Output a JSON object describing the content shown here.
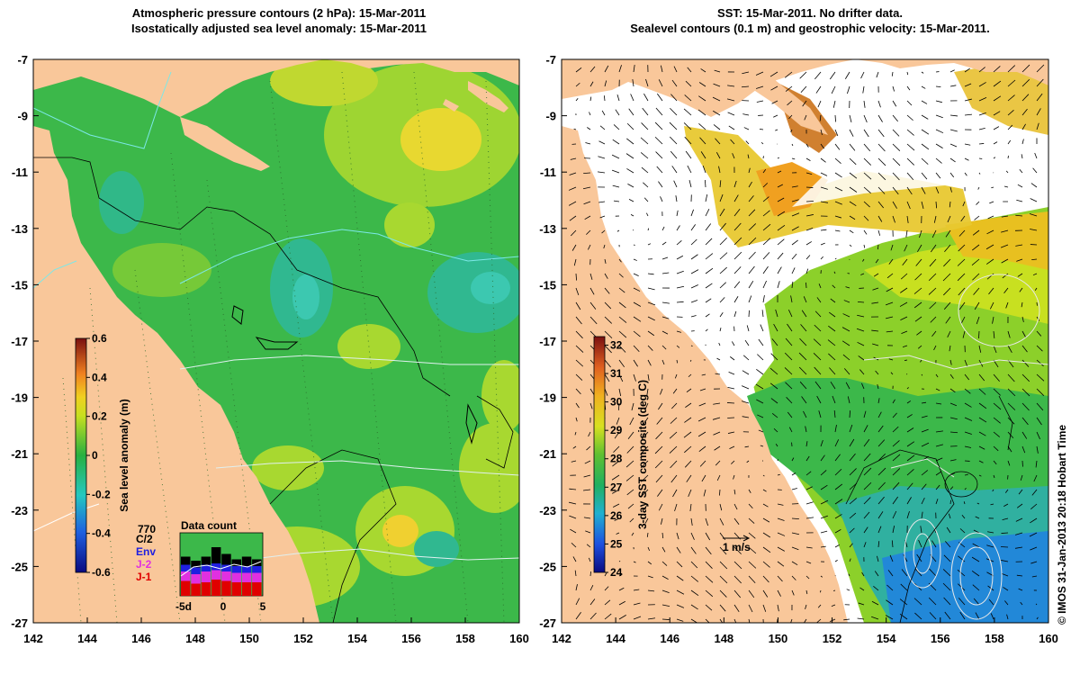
{
  "left_panel": {
    "title_line1": "Atmospheric pressure contours (2 hPa): 15-Mar-2011",
    "title_line2": "Isostatically adjusted sea level anomaly: 15-Mar-2011",
    "lat_ticks": [
      "-7",
      "-9",
      "-11",
      "-13",
      "-15",
      "-17",
      "-19",
      "-21",
      "-23",
      "-25",
      "-27"
    ],
    "lon_ticks": [
      "142",
      "144",
      "146",
      "148",
      "150",
      "152",
      "154",
      "156",
      "158",
      "160"
    ],
    "colorbar": {
      "label": "Sea level anomaly (m)",
      "ticks": [
        "0.6",
        "0.4",
        "0.2",
        "0",
        "-0.2",
        "-0.4",
        "-0.6"
      ],
      "range": [
        -0.6,
        0.6
      ]
    },
    "data_count": {
      "title": "Data count",
      "max_label": "770",
      "legend": [
        "C/2",
        "Env",
        "J-2",
        "J-1"
      ],
      "legend_colors": [
        "#000000",
        "#1f1fe0",
        "#e030e0",
        "#e00000"
      ],
      "x_ticks": [
        "-5d",
        "0",
        "5"
      ]
    }
  },
  "right_panel": {
    "title_line1": "SST: 15-Mar-2011. No drifter data.",
    "title_line2": "Sealevel contours (0.1 m) and geostrophic velocity: 15-Mar-2011.",
    "lat_ticks": [
      "-7",
      "-9",
      "-11",
      "-13",
      "-15",
      "-17",
      "-19",
      "-21",
      "-23",
      "-25",
      "-27"
    ],
    "lon_ticks": [
      "142",
      "144",
      "146",
      "148",
      "150",
      "152",
      "154",
      "156",
      "158",
      "160"
    ],
    "colorbar": {
      "label": "3-day SST composite (deg C)",
      "ticks": [
        "32",
        "31",
        "30",
        "29",
        "28",
        "27",
        "26",
        "25",
        "24"
      ],
      "range": [
        24,
        32.3
      ]
    },
    "velocity_scale_label": "1 m/s"
  },
  "credit": "© IMOS 31-Jan-2013 20:18 Hobart Time",
  "colors": {
    "land": "#f9c79a",
    "ocean_green": "#32b84a",
    "no_data": "#ffffff"
  }
}
